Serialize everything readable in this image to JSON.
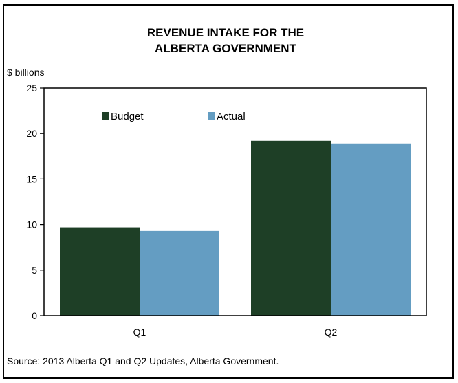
{
  "chart_data": {
    "type": "bar",
    "title_lines": [
      "REVENUE INTAKE FOR THE",
      "ALBERTA GOVERNMENT"
    ],
    "ylabel": "$ billions",
    "categories": [
      "Q1",
      "Q2"
    ],
    "series": [
      {
        "name": "Budget",
        "color": "#1e3f26",
        "values": [
          9.7,
          19.2
        ]
      },
      {
        "name": "Actual",
        "color": "#649dc2",
        "values": [
          9.3,
          18.9
        ]
      }
    ],
    "ylim": [
      0,
      25
    ],
    "yticks": [
      0,
      5,
      10,
      15,
      20,
      25
    ],
    "grid": false,
    "legend": "top-left"
  },
  "source_note": "Source: 2013 Alberta Q1 and Q2 Updates, Alberta Government."
}
